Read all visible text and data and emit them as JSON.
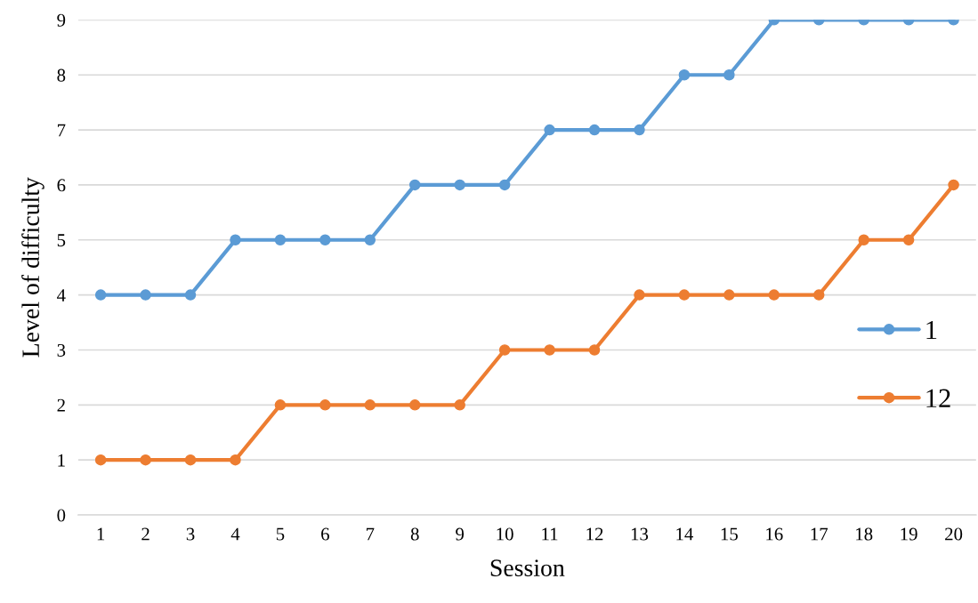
{
  "chart_data": {
    "type": "line",
    "xlabel": "Session",
    "ylabel": "Level of difficulty",
    "categories": [
      "1",
      "2",
      "3",
      "4",
      "5",
      "6",
      "7",
      "8",
      "9",
      "10",
      "11",
      "12",
      "13",
      "14",
      "15",
      "16",
      "17",
      "18",
      "19",
      "20"
    ],
    "series": [
      {
        "name": "1",
        "color": "#5b9bd5",
        "values": [
          4,
          4,
          4,
          5,
          5,
          5,
          5,
          6,
          6,
          6,
          7,
          7,
          7,
          8,
          8,
          9,
          9,
          9,
          9,
          9
        ]
      },
      {
        "name": "12",
        "color": "#ed7d31",
        "values": [
          1,
          1,
          1,
          1,
          2,
          2,
          2,
          2,
          2,
          3,
          3,
          3,
          4,
          4,
          4,
          4,
          4,
          5,
          5,
          6
        ]
      }
    ],
    "ylim": [
      0,
      9
    ],
    "yticks": [
      0,
      1,
      2,
      3,
      4,
      5,
      6,
      7,
      8,
      9
    ],
    "grid": "y",
    "legend": "right",
    "marker": "circle",
    "line_style": "solid"
  }
}
